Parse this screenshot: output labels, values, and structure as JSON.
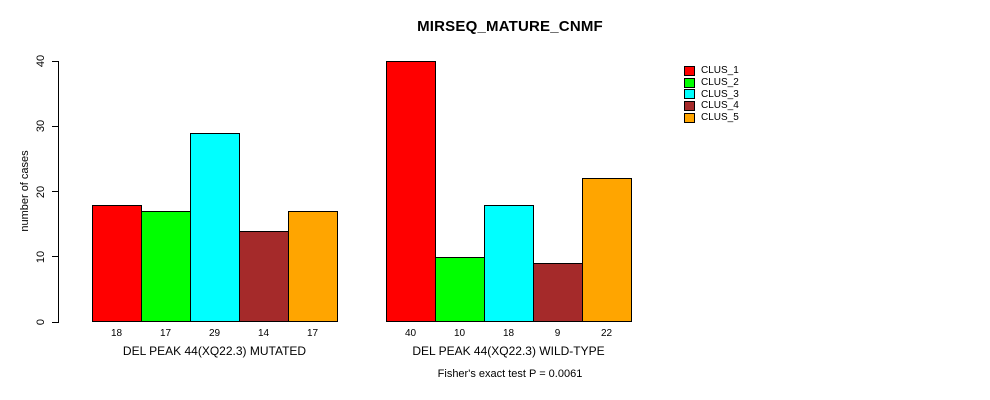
{
  "chart_data": {
    "type": "bar",
    "title": "MIRSEQ_MATURE_CNMF",
    "ylabel": "number of cases",
    "annotation": "Fisher's exact test P = 0.0061",
    "ylim": [
      0,
      40
    ],
    "yticks": [
      0,
      10,
      20,
      30,
      40
    ],
    "grid": false,
    "legend_position": "right",
    "bar_border_color": "#000000",
    "categories": [
      "DEL PEAK 44(XQ22.3) MUTATED",
      "DEL PEAK 44(XQ22.3) WILD-TYPE"
    ],
    "series": [
      {
        "name": "CLUS_1",
        "color": "#ff0000",
        "values": [
          18,
          40
        ]
      },
      {
        "name": "CLUS_2",
        "color": "#00ff00",
        "values": [
          17,
          10
        ]
      },
      {
        "name": "CLUS_3",
        "color": "#00ffff",
        "values": [
          29,
          18
        ]
      },
      {
        "name": "CLUS_4",
        "color": "#a52a2a",
        "values": [
          14,
          9
        ]
      },
      {
        "name": "CLUS_5",
        "color": "#ffa500",
        "values": [
          17,
          22
        ]
      }
    ],
    "bar_value_labels": [
      [
        18,
        17,
        29,
        14,
        17
      ],
      [
        40,
        10,
        18,
        9,
        22
      ]
    ]
  }
}
